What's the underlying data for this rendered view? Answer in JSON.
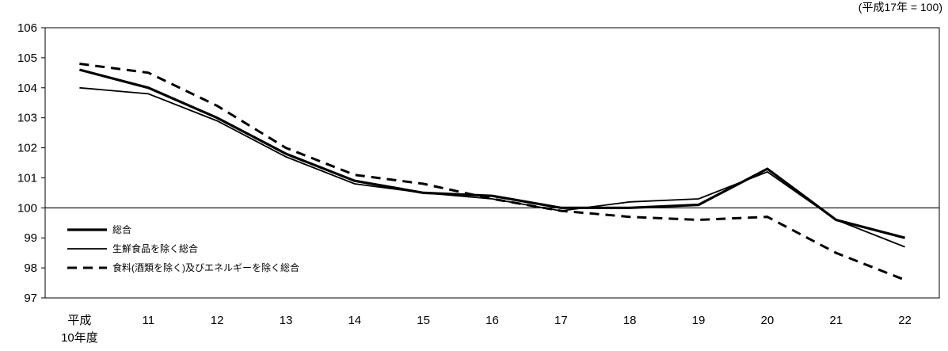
{
  "chart_data": {
    "type": "line",
    "unit_note": "(平成17年 = 100)",
    "categories": [
      "平成\n10年度",
      "11",
      "12",
      "13",
      "14",
      "15",
      "16",
      "17",
      "18",
      "19",
      "20",
      "21",
      "22"
    ],
    "ylim": [
      97,
      106
    ],
    "yticks": [
      97,
      98,
      99,
      100,
      101,
      102,
      103,
      104,
      105,
      106
    ],
    "reference_line": 100,
    "grid": false,
    "legend_position": "lower-left",
    "series": [
      {
        "name": "総合",
        "style": "thick-solid",
        "color": "#000000",
        "values": [
          104.6,
          104.0,
          103.0,
          101.8,
          100.9,
          100.5,
          100.4,
          100.0,
          100.0,
          100.1,
          101.3,
          99.6,
          99.0
        ]
      },
      {
        "name": "生鮮食品を除く総合",
        "style": "thin-solid",
        "color": "#000000",
        "values": [
          104.0,
          103.8,
          102.9,
          101.7,
          100.8,
          100.5,
          100.3,
          99.9,
          100.2,
          100.3,
          101.2,
          99.6,
          98.7
        ]
      },
      {
        "name": "食料(酒類を除く)及びエネルギーを除く総合",
        "style": "dashed",
        "color": "#000000",
        "values": [
          104.8,
          104.5,
          103.4,
          102.0,
          101.1,
          100.8,
          100.3,
          99.9,
          99.7,
          99.6,
          99.7,
          98.5,
          97.6
        ]
      }
    ]
  }
}
